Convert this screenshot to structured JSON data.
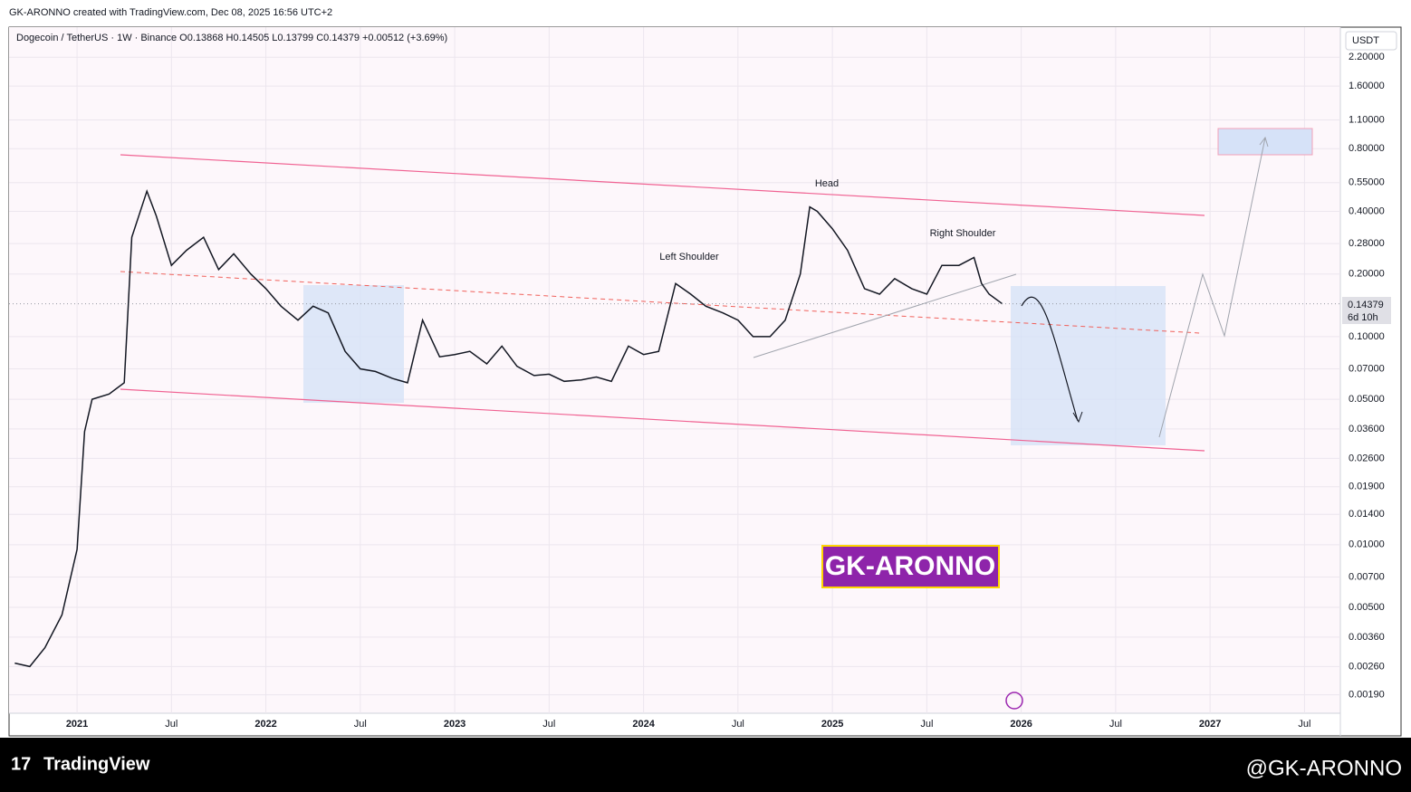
{
  "header": "GK-ARONNO created with TradingView.com, Dec 08, 2025 16:56 UTC+2",
  "chart_data": {
    "type": "line",
    "title": "Dogecoin / TetherUS · 1W · Binance  O0.13868  H0.14505  L0.13799  C0.14379  +0.00512 (+3.69%)",
    "currency": "USDT",
    "log_scale": true,
    "color": "#131722",
    "x": [
      2020.67,
      2020.75,
      2020.83,
      2020.92,
      2021.0,
      2021.04,
      2021.08,
      2021.17,
      2021.25,
      2021.29,
      2021.37,
      2021.42,
      2021.5,
      2021.58,
      2021.67,
      2021.75,
      2021.83,
      2021.92,
      2022.0,
      2022.08,
      2022.17,
      2022.25,
      2022.33,
      2022.42,
      2022.5,
      2022.58,
      2022.67,
      2022.75,
      2022.83,
      2022.92,
      2023.0,
      2023.08,
      2023.17,
      2023.25,
      2023.33,
      2023.42,
      2023.5,
      2023.58,
      2023.67,
      2023.75,
      2023.83,
      2023.92,
      2024.0,
      2024.08,
      2024.17,
      2024.25,
      2024.33,
      2024.42,
      2024.5,
      2024.58,
      2024.67,
      2024.75,
      2024.83,
      2024.88,
      2024.92,
      2025.0,
      2025.08,
      2025.17,
      2025.25,
      2025.33,
      2025.42,
      2025.5,
      2025.58,
      2025.67,
      2025.75,
      2025.79,
      2025.83,
      2025.9
    ],
    "values": [
      0.0027,
      0.0026,
      0.0032,
      0.0046,
      0.0095,
      0.035,
      0.05,
      0.053,
      0.06,
      0.3,
      0.5,
      0.38,
      0.22,
      0.26,
      0.3,
      0.21,
      0.25,
      0.2,
      0.17,
      0.14,
      0.12,
      0.14,
      0.13,
      0.085,
      0.07,
      0.068,
      0.063,
      0.06,
      0.12,
      0.08,
      0.082,
      0.085,
      0.074,
      0.09,
      0.072,
      0.065,
      0.066,
      0.061,
      0.062,
      0.064,
      0.061,
      0.09,
      0.082,
      0.085,
      0.18,
      0.16,
      0.14,
      0.13,
      0.12,
      0.1,
      0.1,
      0.12,
      0.2,
      0.42,
      0.4,
      0.33,
      0.26,
      0.17,
      0.16,
      0.19,
      0.17,
      0.16,
      0.22,
      0.22,
      0.24,
      0.18,
      0.16,
      0.14379
    ],
    "xlim": [
      2020.64,
      2027.69
    ],
    "ylim": [
      0.00155,
      3.07
    ],
    "xticks": [
      {
        "value": 2021,
        "label": "2021"
      },
      {
        "value": 2021.5,
        "label": "Jul"
      },
      {
        "value": 2022,
        "label": "2022"
      },
      {
        "value": 2022.5,
        "label": "Jul"
      },
      {
        "value": 2023,
        "label": "2023"
      },
      {
        "value": 2023.5,
        "label": "Jul"
      },
      {
        "value": 2024,
        "label": "2024"
      },
      {
        "value": 2024.5,
        "label": "Jul"
      },
      {
        "value": 2025,
        "label": "2025"
      },
      {
        "value": 2025.5,
        "label": "Jul"
      },
      {
        "value": 2026,
        "label": "2026"
      },
      {
        "value": 2026.5,
        "label": "Jul"
      },
      {
        "value": 2027,
        "label": "2027"
      },
      {
        "value": 2027.5,
        "label": "Jul"
      }
    ],
    "yticks": [
      {
        "value": 2.2,
        "label": "2.20000"
      },
      {
        "value": 1.6,
        "label": "1.60000"
      },
      {
        "value": 1.1,
        "label": "1.10000"
      },
      {
        "value": 0.8,
        "label": "0.80000"
      },
      {
        "value": 0.55,
        "label": "0.55000"
      },
      {
        "value": 0.4,
        "label": "0.40000"
      },
      {
        "value": 0.28,
        "label": "0.28000"
      },
      {
        "value": 0.2,
        "label": "0.20000"
      },
      {
        "value": 0.1,
        "label": "0.10000"
      },
      {
        "value": 0.07,
        "label": "0.07000"
      },
      {
        "value": 0.05,
        "label": "0.05000"
      },
      {
        "value": 0.036,
        "label": "0.03600"
      },
      {
        "value": 0.026,
        "label": "0.02600"
      },
      {
        "value": 0.019,
        "label": "0.01900"
      },
      {
        "value": 0.014,
        "label": "0.01400"
      },
      {
        "value": 0.01,
        "label": "0.01000"
      },
      {
        "value": 0.007,
        "label": "0.00700"
      },
      {
        "value": 0.005,
        "label": "0.00500"
      },
      {
        "value": 0.0036,
        "label": "0.00360"
      },
      {
        "value": 0.0026,
        "label": "0.00260"
      },
      {
        "value": 0.0019,
        "label": "0.00190"
      }
    ],
    "grid": true,
    "last_price": {
      "value": 0.14379,
      "label": "0.14379"
    },
    "countdown": "6d 10h",
    "annotations": [
      "Left Shoulder",
      "Head",
      "Right Shoulder"
    ],
    "watermark": "GK-ARONNO"
  },
  "footer": {
    "brand": "TradingView",
    "author": "@GK-ARONNO"
  }
}
